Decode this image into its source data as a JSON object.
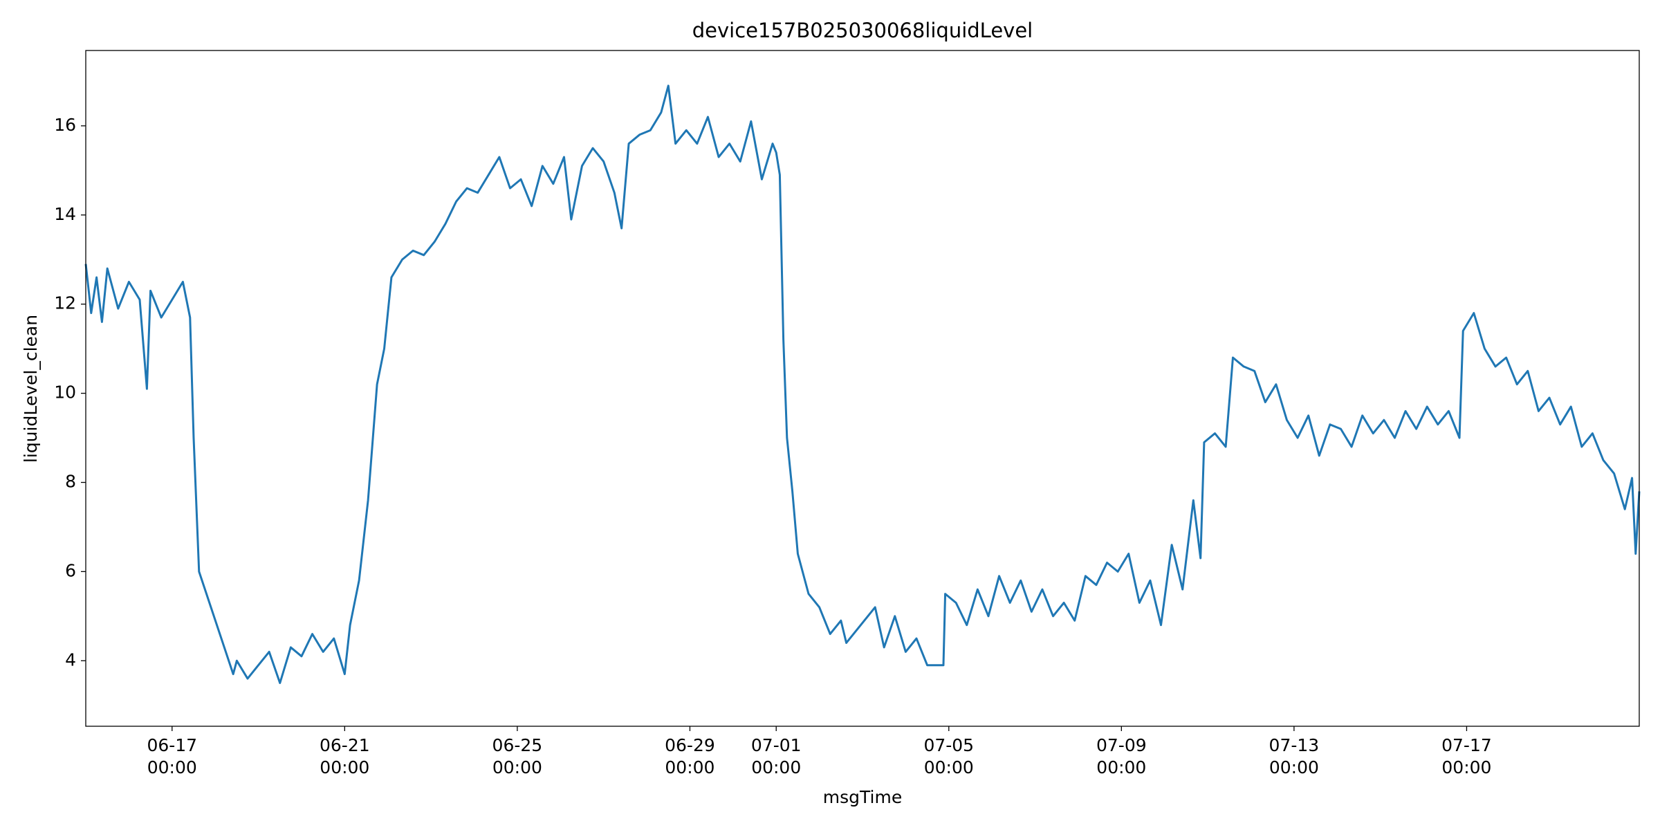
{
  "chart_data": {
    "type": "line",
    "title": "device157B025030068liquidLevel",
    "xlabel": "msgTime",
    "ylabel": "liquidLevel_clean",
    "color": "#1f77b4",
    "xlim": [
      "06-15 00:00",
      "07-21 00:00"
    ],
    "ylim": [
      2.53,
      17.69
    ],
    "xticks": [
      "06-17 00:00",
      "06-21 00:00",
      "06-25 00:00",
      "06-29 00:00",
      "07-01 00:00",
      "07-05 00:00",
      "07-09 00:00",
      "07-13 00:00",
      "07-17 00:00"
    ],
    "yticks": [
      4,
      6,
      8,
      10,
      12,
      14,
      16
    ],
    "x": [
      "06-15 00:00",
      "06-15 03:00",
      "06-15 06:00",
      "06-15 09:00",
      "06-15 12:00",
      "06-15 18:00",
      "06-16 00:00",
      "06-16 06:00",
      "06-16 10:00",
      "06-16 12:00",
      "06-16 18:00",
      "06-17 00:00",
      "06-17 06:00",
      "06-17 10:00",
      "06-17 12:00",
      "06-17 15:00",
      "06-18 10:00",
      "06-18 12:00",
      "06-18 18:00",
      "06-19 00:00",
      "06-19 06:00",
      "06-19 12:00",
      "06-19 18:00",
      "06-20 00:00",
      "06-20 06:00",
      "06-20 12:00",
      "06-20 18:00",
      "06-21 00:00",
      "06-21 03:00",
      "06-21 08:00",
      "06-21 13:00",
      "06-21 18:00",
      "06-21 22:00",
      "06-22 02:00",
      "06-22 08:00",
      "06-22 14:00",
      "06-22 20:00",
      "06-23 02:00",
      "06-23 08:00",
      "06-23 14:00",
      "06-23 20:00",
      "06-24 02:00",
      "06-24 08:00",
      "06-24 14:00",
      "06-24 20:00",
      "06-25 02:00",
      "06-25 08:00",
      "06-25 14:00",
      "06-25 20:00",
      "06-26 02:00",
      "06-26 06:00",
      "06-26 12:00",
      "06-26 18:00",
      "06-27 00:00",
      "06-27 06:00",
      "06-27 10:00",
      "06-27 14:00",
      "06-27 20:00",
      "06-28 02:00",
      "06-28 08:00",
      "06-28 12:00",
      "06-28 16:00",
      "06-28 22:00",
      "06-29 04:00",
      "06-29 10:00",
      "06-29 16:00",
      "06-29 22:00",
      "06-30 04:00",
      "06-30 10:00",
      "06-30 16:00",
      "06-30 22:00",
      "07-01 00:00",
      "07-01 02:00",
      "07-01 04:00",
      "07-01 06:00",
      "07-01 09:00",
      "07-01 12:00",
      "07-01 18:00",
      "07-02 00:00",
      "07-02 06:00",
      "07-02 12:00",
      "07-02 15:00",
      "07-03 07:00",
      "07-03 12:00",
      "07-03 18:00",
      "07-04 00:00",
      "07-04 06:00",
      "07-04 12:00",
      "07-04 21:00",
      "07-04 22:00",
      "07-05 04:00",
      "07-05 10:00",
      "07-05 16:00",
      "07-05 22:00",
      "07-06 04:00",
      "07-06 10:00",
      "07-06 16:00",
      "07-06 22:00",
      "07-07 04:00",
      "07-07 10:00",
      "07-07 16:00",
      "07-07 22:00",
      "07-08 04:00",
      "07-08 10:00",
      "07-08 16:00",
      "07-08 22:00",
      "07-09 04:00",
      "07-09 10:00",
      "07-09 16:00",
      "07-09 22:00",
      "07-10 04:00",
      "07-10 10:00",
      "07-10 16:00",
      "07-10 20:00",
      "07-10 22:00",
      "07-11 04:00",
      "07-11 10:00",
      "07-11 14:00",
      "07-11 20:00",
      "07-12 02:00",
      "07-12 08:00",
      "07-12 14:00",
      "07-12 20:00",
      "07-13 02:00",
      "07-13 08:00",
      "07-13 14:00",
      "07-13 20:00",
      "07-14 02:00",
      "07-14 08:00",
      "07-14 14:00",
      "07-14 20:00",
      "07-15 02:00",
      "07-15 08:00",
      "07-15 14:00",
      "07-15 20:00",
      "07-16 02:00",
      "07-16 08:00",
      "07-16 14:00",
      "07-16 20:00",
      "07-16 22:00",
      "07-17 04:00",
      "07-17 10:00",
      "07-17 16:00",
      "07-17 22:00",
      "07-18 04:00",
      "07-18 10:00",
      "07-18 16:00",
      "07-18 22:00",
      "07-19 04:00",
      "07-19 10:00",
      "07-19 16:00",
      "07-19 22:00",
      "07-20 04:00",
      "07-20 10:00",
      "07-20 16:00",
      "07-20 20:00",
      "07-20 22:00",
      "07-21 00:00"
    ],
    "values": [
      12.9,
      11.8,
      12.6,
      11.6,
      12.8,
      11.9,
      12.5,
      12.1,
      10.1,
      12.3,
      11.7,
      12.1,
      12.5,
      11.7,
      9.0,
      6.0,
      3.7,
      4.0,
      3.6,
      3.9,
      4.2,
      3.5,
      4.3,
      4.1,
      4.6,
      4.2,
      4.5,
      3.7,
      4.8,
      5.8,
      7.6,
      10.2,
      11.0,
      12.6,
      13.0,
      13.2,
      13.1,
      13.4,
      13.8,
      14.3,
      14.6,
      14.5,
      14.9,
      15.3,
      14.6,
      14.8,
      14.2,
      15.1,
      14.7,
      15.3,
      13.9,
      15.1,
      15.5,
      15.2,
      14.5,
      13.7,
      15.6,
      15.8,
      15.9,
      16.3,
      16.9,
      15.6,
      15.9,
      15.6,
      16.2,
      15.3,
      15.6,
      15.2,
      16.1,
      14.8,
      15.6,
      15.4,
      14.9,
      11.2,
      9.0,
      7.8,
      6.4,
      5.5,
      5.2,
      4.6,
      4.9,
      4.4,
      5.2,
      4.3,
      5.0,
      4.2,
      4.5,
      3.9,
      3.9,
      5.5,
      5.3,
      4.8,
      5.6,
      5.0,
      5.9,
      5.3,
      5.8,
      5.1,
      5.6,
      5.0,
      5.3,
      4.9,
      5.9,
      5.7,
      6.2,
      6.0,
      6.4,
      5.3,
      5.8,
      4.8,
      6.6,
      5.6,
      7.6,
      6.3,
      8.9,
      9.1,
      8.8,
      10.8,
      10.6,
      10.5,
      9.8,
      10.2,
      9.4,
      9.0,
      9.5,
      8.6,
      9.3,
      9.2,
      8.8,
      9.5,
      9.1,
      9.4,
      9.0,
      9.6,
      9.2,
      9.7,
      9.3,
      9.6,
      9.0,
      11.4,
      11.8,
      11.0,
      10.6,
      10.8,
      10.2,
      10.5,
      9.6,
      9.9,
      9.3,
      9.7,
      8.8,
      9.1,
      8.5,
      8.2,
      7.4,
      8.1,
      6.4,
      7.8
    ]
  }
}
